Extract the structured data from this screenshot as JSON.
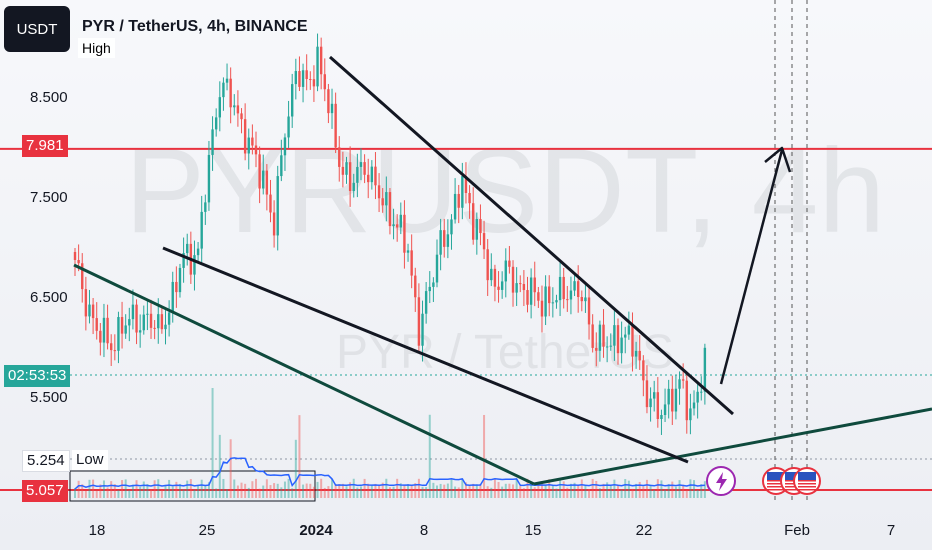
{
  "header": {
    "ticker_badge": "USDT",
    "title": "PYR / TetherUS, 4h, BINANCE"
  },
  "watermark": {
    "main": "PYRUSDT, 4h",
    "sub": "PYR / TetherUS"
  },
  "labels": {
    "high": "High",
    "low": "Low",
    "low_value": "5.254",
    "resistance_value": "7.981",
    "countdown": "02:53:53",
    "bottom_value": "5.057"
  },
  "colors": {
    "up": "#26a69a",
    "down": "#ef5350",
    "resistance": "#e8323f",
    "wedge_line": "#0f4a3d",
    "ma_line": "#2962ff"
  },
  "chart_data": {
    "type": "candlestick",
    "title": "PYR / TetherUS, 4h, BINANCE",
    "y_ticks": [
      8.5,
      7.5,
      6.5,
      5.5
    ],
    "y_tick_labels": [
      "8.500",
      "7.500",
      "6.500",
      "5.500"
    ],
    "x_tick_labels": [
      "18",
      "25",
      "2024",
      "8",
      "15",
      "22",
      "Feb",
      "7"
    ],
    "ylim": [
      4.86,
      9.32
    ],
    "price_points": [
      {
        "t": 0,
        "v": 6.82
      },
      {
        "t": 6,
        "v": 6.15
      },
      {
        "t": 10,
        "v": 6.05
      },
      {
        "t": 16,
        "v": 6.3
      },
      {
        "t": 23,
        "v": 6.2
      },
      {
        "t": 27,
        "v": 6.45
      },
      {
        "t": 30,
        "v": 6.95
      },
      {
        "t": 34,
        "v": 6.9
      },
      {
        "t": 37,
        "v": 7.9
      },
      {
        "t": 40,
        "v": 8.6
      },
      {
        "t": 44,
        "v": 8.45
      },
      {
        "t": 48,
        "v": 8.0
      },
      {
        "t": 52,
        "v": 7.7
      },
      {
        "t": 55,
        "v": 7.2
      },
      {
        "t": 58,
        "v": 8.2
      },
      {
        "t": 61,
        "v": 8.75
      },
      {
        "t": 64,
        "v": 8.6
      },
      {
        "t": 67,
        "v": 8.9
      },
      {
        "t": 70,
        "v": 8.4
      },
      {
        "t": 73,
        "v": 7.9
      },
      {
        "t": 76,
        "v": 7.6
      },
      {
        "t": 80,
        "v": 7.85
      },
      {
        "t": 84,
        "v": 7.5
      },
      {
        "t": 88,
        "v": 7.3
      },
      {
        "t": 92,
        "v": 6.95
      },
      {
        "t": 95,
        "v": 6.2
      },
      {
        "t": 98,
        "v": 6.55
      },
      {
        "t": 101,
        "v": 7.1
      },
      {
        "t": 104,
        "v": 7.2
      },
      {
        "t": 107,
        "v": 7.7
      },
      {
        "t": 110,
        "v": 7.25
      },
      {
        "t": 113,
        "v": 6.95
      },
      {
        "t": 116,
        "v": 6.6
      },
      {
        "t": 120,
        "v": 6.75
      },
      {
        "t": 124,
        "v": 6.55
      },
      {
        "t": 128,
        "v": 6.5
      },
      {
        "t": 132,
        "v": 6.45
      },
      {
        "t": 136,
        "v": 6.6
      },
      {
        "t": 140,
        "v": 6.5
      },
      {
        "t": 143,
        "v": 6.1
      },
      {
        "t": 147,
        "v": 6.0
      },
      {
        "t": 151,
        "v": 6.15
      },
      {
        "t": 155,
        "v": 5.95
      },
      {
        "t": 158,
        "v": 5.55
      },
      {
        "t": 161,
        "v": 5.3
      },
      {
        "t": 164,
        "v": 5.5
      },
      {
        "t": 167,
        "v": 5.6
      },
      {
        "t": 170,
        "v": 5.35
      },
      {
        "t": 172,
        "v": 5.55
      },
      {
        "t": 174,
        "v": 5.85
      }
    ],
    "resistance_level": 7.981,
    "last_price": 5.87,
    "support_low": 5.254,
    "projection": {
      "from": 5.87,
      "to": 7.98
    },
    "annotations": [
      "falling wedge upper line",
      "falling wedge lower line",
      "upward projection arrow"
    ],
    "grid": false
  }
}
